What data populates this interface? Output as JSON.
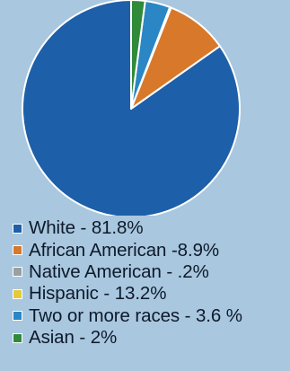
{
  "chart_data": {
    "type": "pie",
    "start_angle_deg": 0,
    "direction": "counterclockwise",
    "slices": [
      {
        "label": "White - 81.8%",
        "value": 81.8,
        "color": "#1d5fa8"
      },
      {
        "label": "African American -8.9%",
        "value": 8.9,
        "color": "#d8782a"
      },
      {
        "label": "Native American - .2%",
        "value": 0.2,
        "color": "#9aa0a0"
      },
      {
        "label": "Hispanic - 13.2%",
        "value": 13.2,
        "color": "#e6c93a",
        "shown_in_pie": false
      },
      {
        "label": "Two or more races - 3.6 %",
        "value": 3.6,
        "color": "#2a86c4"
      },
      {
        "label": "Asian - 2%",
        "value": 2,
        "color": "#2f8a3a"
      }
    ]
  }
}
